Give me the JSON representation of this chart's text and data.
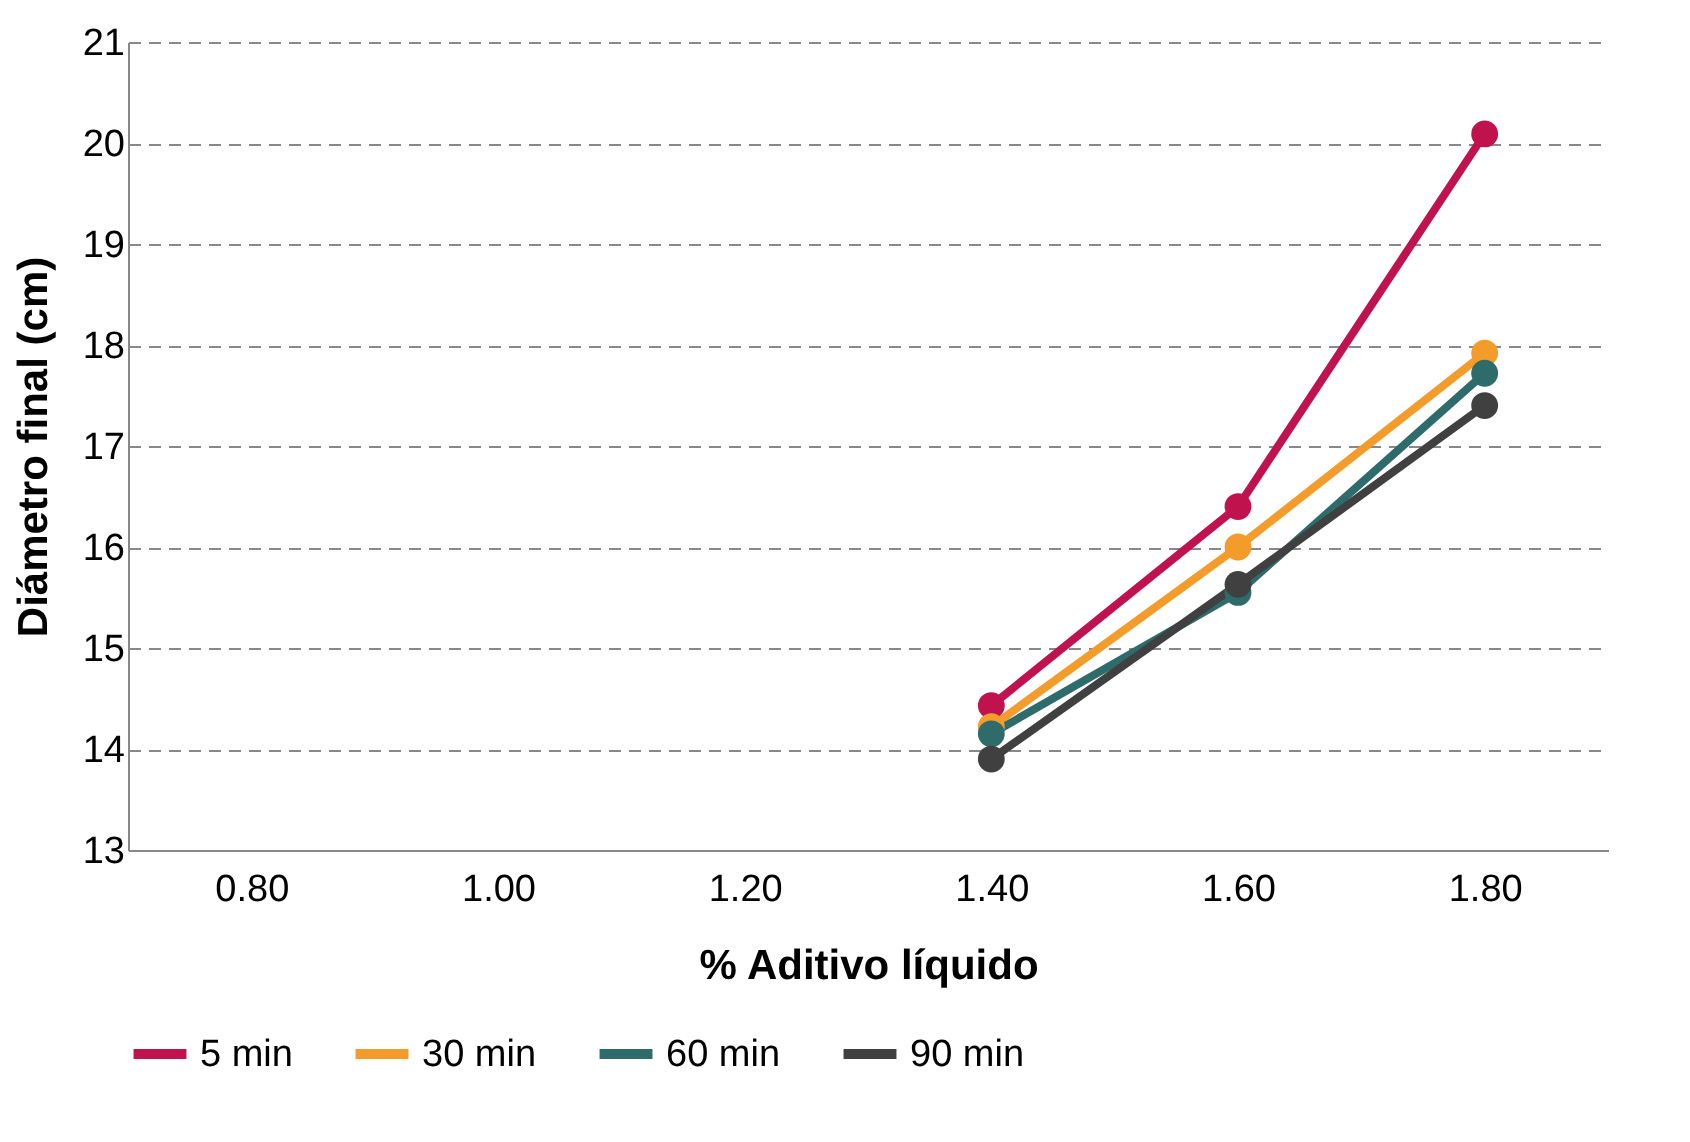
{
  "chart_data": {
    "type": "line",
    "xlabel": "% Aditivo líquido",
    "ylabel": "Diámetro final (cm)",
    "x": [
      1.4,
      1.6,
      1.8
    ],
    "series": [
      {
        "name": "5 min",
        "color": "#c0134e",
        "values": [
          14.43,
          16.4,
          20.09
        ]
      },
      {
        "name": "30 min",
        "color": "#f39c2b",
        "values": [
          14.22,
          16.0,
          17.92
        ]
      },
      {
        "name": "60 min",
        "color": "#2e6b6b",
        "values": [
          14.15,
          15.55,
          17.72
        ]
      },
      {
        "name": "90 min",
        "color": "#404040",
        "values": [
          13.9,
          15.63,
          17.4
        ]
      }
    ],
    "xlim": [
      0.7,
      1.9
    ],
    "xticks": [
      {
        "value": 0.8,
        "label": "0.80"
      },
      {
        "value": 1.0,
        "label": "1.00"
      },
      {
        "value": 1.2,
        "label": "1.20"
      },
      {
        "value": 1.4,
        "label": "1.40"
      },
      {
        "value": 1.6,
        "label": "1.60"
      },
      {
        "value": 1.8,
        "label": "1.80"
      }
    ],
    "ylim": [
      13,
      21
    ],
    "yticks": [
      13,
      14,
      15,
      16,
      17,
      18,
      19,
      20,
      21
    ],
    "grid": "y",
    "legend": "bottom",
    "marker": "circle",
    "line_style": "solid"
  }
}
